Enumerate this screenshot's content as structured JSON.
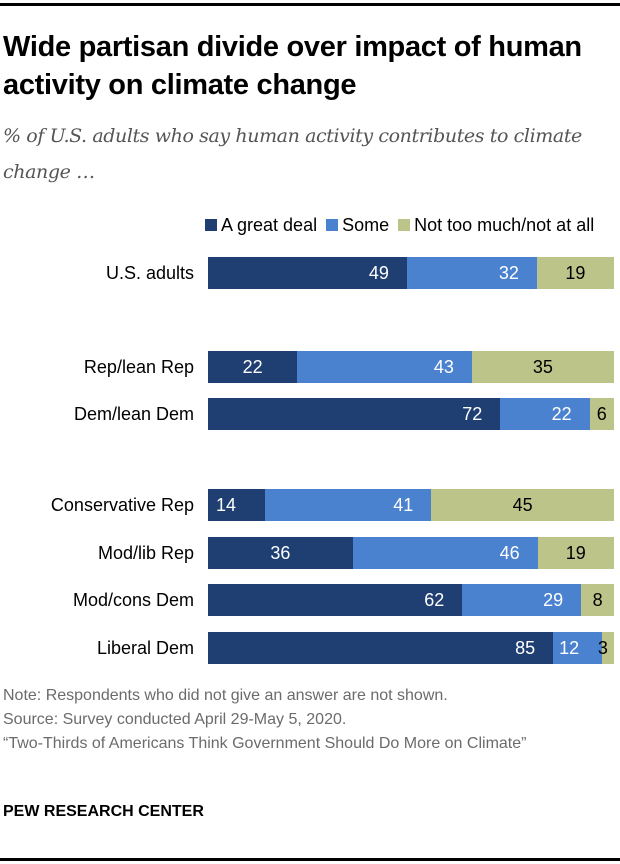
{
  "chart_data": {
    "type": "bar",
    "orientation": "horizontal",
    "stacked": true,
    "title": "Wide partisan divide over impact of human activity on climate change",
    "subtitle": "% of U.S. adults who say human activity contributes to climate change …",
    "xlabel": "",
    "ylabel": "",
    "xlim": [
      0,
      100
    ],
    "grid": false,
    "legend_position": "top",
    "categories": [
      "U.S. adults",
      "Rep/lean Rep",
      "Dem/lean Dem",
      "Conservative Rep",
      "Mod/lib Rep",
      "Mod/cons Dem",
      "Liberal Dem"
    ],
    "groups": [
      [
        0
      ],
      [
        1,
        2
      ],
      [
        3,
        4,
        5,
        6
      ]
    ],
    "series": [
      {
        "name": "A great deal",
        "color": "#1f3f73",
        "label_color": "#ffffff",
        "values": [
          49,
          22,
          72,
          14,
          36,
          62,
          85
        ]
      },
      {
        "name": "Some",
        "color": "#4a82cf",
        "label_color": "#ffffff",
        "values": [
          32,
          43,
          22,
          41,
          46,
          29,
          12
        ]
      },
      {
        "name": "Not too much/not at all",
        "color": "#bcc48a",
        "label_color": "#000000",
        "values": [
          19,
          35,
          6,
          45,
          19,
          8,
          3
        ]
      }
    ]
  },
  "header": {
    "title": "Wide partisan divide over impact of human activity on climate change",
    "subtitle": "% of U.S. adults who say human activity contributes to climate change …"
  },
  "footer": {
    "note": "Note: Respondents who did not give an answer are not shown.",
    "source": "Source: Survey conducted April 29-May 5, 2020.",
    "report": "“Two-Thirds of Americans Think Government Should Do More on Climate”",
    "brand": "PEW RESEARCH CENTER"
  }
}
